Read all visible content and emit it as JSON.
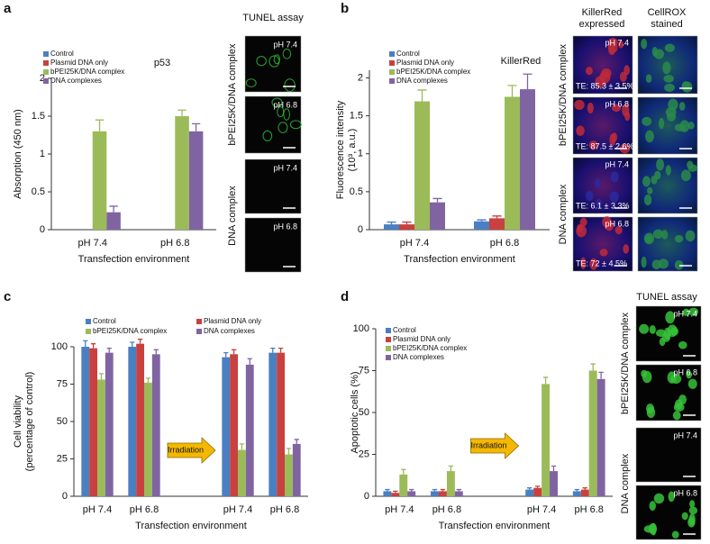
{
  "chart_data": [
    {
      "type": "bar",
      "title": "p53",
      "ylabel": [
        "Absorption (450 nm)"
      ],
      "xlabel": "Transfection environment",
      "categories": [
        "pH 7.4",
        "pH 6.8"
      ],
      "ylim": [
        0,
        2
      ],
      "yticks": [
        0,
        0.5,
        1,
        1.5,
        2
      ],
      "series": [
        {
          "name": "Control",
          "color": "#4a7fc1",
          "values": [
            null,
            null
          ],
          "errors": [
            null,
            null
          ]
        },
        {
          "name": "Plasmid DNA only",
          "color": "#c8413e",
          "values": [
            null,
            null
          ],
          "errors": [
            null,
            null
          ]
        },
        {
          "name": "bPEI25K/DNA complex",
          "color": "#9bbb59",
          "values": [
            1.3,
            1.5
          ],
          "errors": [
            0.15,
            0.08
          ]
        },
        {
          "name": "DNA complexes",
          "color": "#8064a2",
          "values": [
            0.23,
            1.3
          ],
          "errors": [
            0.08,
            0.1
          ]
        }
      ]
    },
    {
      "type": "bar",
      "title": "KillerRed",
      "ylabel": [
        "Fluorescence intensity",
        "(10³, a.u.)"
      ],
      "xlabel": "Transfection environment",
      "categories": [
        "pH 7.4",
        "pH 6.8"
      ],
      "ylim": [
        0,
        2.1
      ],
      "yticks": [
        0,
        0.5,
        1,
        1.5,
        2
      ],
      "series": [
        {
          "name": "Control",
          "color": "#4a7fc1",
          "values": [
            0.07,
            0.11
          ],
          "errors": [
            0.03,
            0.02
          ]
        },
        {
          "name": "Plasmid DNA only",
          "color": "#c8413e",
          "values": [
            0.07,
            0.15
          ],
          "errors": [
            0.03,
            0.03
          ]
        },
        {
          "name": "bPEI25K/DNA complex",
          "color": "#9bbb59",
          "values": [
            1.69,
            1.75
          ],
          "errors": [
            0.15,
            0.15
          ]
        },
        {
          "name": "DNA complexes",
          "color": "#8064a2",
          "values": [
            0.36,
            1.85
          ],
          "errors": [
            0.05,
            0.2
          ]
        }
      ]
    },
    {
      "type": "bar",
      "ylabel": [
        "Cell viability",
        "(percentage of control)"
      ],
      "xlabel": "Transfection environment",
      "annotation": "Irradiation",
      "categories": [
        "pH 7.4",
        "pH 6.8",
        null,
        "pH 7.4",
        "pH 6.8"
      ],
      "ylim": [
        0,
        100
      ],
      "yticks": [
        0,
        25,
        50,
        75,
        100
      ],
      "series": [
        {
          "name": "Control",
          "color": "#4a7fc1",
          "values": [
            100,
            100,
            null,
            93,
            96
          ],
          "errors": [
            4,
            3,
            null,
            3,
            3
          ]
        },
        {
          "name": "Plasmid DNA only",
          "color": "#c8413e",
          "values": [
            99,
            102,
            null,
            95,
            96
          ],
          "errors": [
            3,
            3,
            null,
            3,
            3
          ]
        },
        {
          "name": "bPEI25K/DNA complex",
          "color": "#9bbb59",
          "values": [
            78,
            76,
            null,
            31,
            28
          ],
          "errors": [
            4,
            3,
            null,
            4,
            4
          ]
        },
        {
          "name": "DNA complexes",
          "color": "#8064a2",
          "values": [
            96,
            95,
            null,
            88,
            35
          ],
          "errors": [
            3,
            3,
            null,
            4,
            3
          ]
        }
      ]
    },
    {
      "type": "bar",
      "ylabel": [
        "Apoptotic cells (%)"
      ],
      "xlabel": "Transfection environment",
      "annotation": "Irradiation",
      "categories": [
        "pH 7.4",
        "pH 6.8",
        null,
        "pH 7.4",
        "pH 6.8"
      ],
      "ylim": [
        0,
        100
      ],
      "yticks": [
        0,
        25,
        50,
        75,
        100
      ],
      "series": [
        {
          "name": "Control",
          "color": "#4a7fc1",
          "values": [
            3,
            3,
            null,
            4,
            3
          ],
          "errors": [
            1,
            1,
            null,
            1,
            1
          ]
        },
        {
          "name": "Plasmid DNA only",
          "color": "#c8413e",
          "values": [
            2,
            3,
            null,
            5,
            4
          ],
          "errors": [
            1,
            1,
            null,
            1,
            1
          ]
        },
        {
          "name": "bPEI25K/DNA complex",
          "color": "#9bbb59",
          "values": [
            13,
            15,
            null,
            67,
            75
          ],
          "errors": [
            3,
            3,
            null,
            4,
            4
          ]
        },
        {
          "name": "DNA complexes",
          "color": "#8064a2",
          "values": [
            3,
            3,
            null,
            15,
            70
          ],
          "errors": [
            1,
            1,
            null,
            3,
            4
          ]
        }
      ]
    }
  ],
  "figure": {
    "panel_labels": [
      "a",
      "b",
      "c",
      "d"
    ],
    "tunel_a": {
      "title": "TUNEL assay",
      "row_labels": [
        "bPEI25K/DNA complex",
        "DNA complex"
      ],
      "image_labels": [
        "pH 7.4",
        "pH 6.8",
        "pH 7.4",
        "pH 6.8"
      ]
    },
    "killerred_b": {
      "column_labels": [
        [
          "KillerRed",
          "expressed"
        ],
        [
          "CellROX",
          "stained"
        ]
      ],
      "row_labels": [
        "bPEI25K/DNA complex",
        "DNA complex"
      ],
      "image_labels": [
        "pH 7.4",
        "pH 6.8",
        "pH 7.4",
        "pH 6.8"
      ],
      "te_labels": [
        "TE: 85.3 ± 3.5%",
        "TE: 87.5 ± 2.6%",
        "TE: 6.1 ± 3.3%",
        "TE: 72 ± 4.5%"
      ]
    },
    "tunel_d": {
      "title": "TUNEL assay",
      "row_labels": [
        "bPEI25K/DNA complex",
        "DNA complex"
      ],
      "image_labels": [
        "pH 7.4",
        "pH 6.8",
        "pH 7.4",
        "pH 6.8"
      ]
    }
  }
}
